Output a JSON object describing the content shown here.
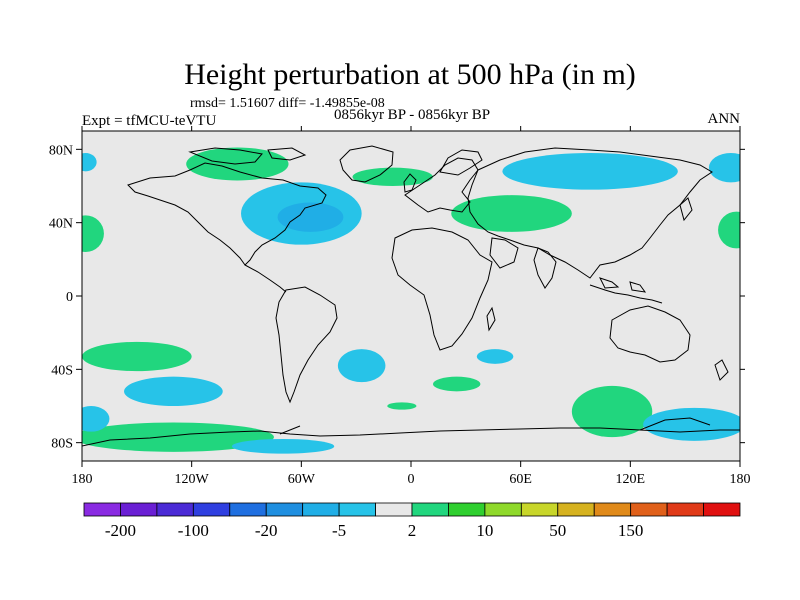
{
  "chart_data": {
    "type": "heatmap",
    "title": "Height perturbation at 500 hPa (in m)",
    "stats_text": "rmsd= 1.51607 diff= -1.49855e-08",
    "left_label": "Expt = tfMCU-teVTU",
    "center_label": "0856kyr BP - 0856kyr BP",
    "right_label": "ANN",
    "x_ticks": [
      {
        "lon": -180,
        "label": "180"
      },
      {
        "lon": -120,
        "label": "120W"
      },
      {
        "lon": -60,
        "label": "60W"
      },
      {
        "lon": 0,
        "label": "0"
      },
      {
        "lon": 60,
        "label": "60E"
      },
      {
        "lon": 120,
        "label": "120E"
      },
      {
        "lon": 180,
        "label": "180"
      }
    ],
    "y_ticks": [
      {
        "lat": 80,
        "label": "80N"
      },
      {
        "lat": 40,
        "label": "40N"
      },
      {
        "lat": 0,
        "label": "0"
      },
      {
        "lat": -40,
        "label": "40S"
      },
      {
        "lat": -80,
        "label": "80S"
      }
    ],
    "xlim": [
      -180,
      180
    ],
    "ylim": [
      -90,
      90
    ],
    "colorbar": {
      "colors": [
        "#8a2be2",
        "#6a1fd4",
        "#4b2bd6",
        "#2f3fe0",
        "#1f6fe0",
        "#1f8fe0",
        "#20aee6",
        "#27c3e8",
        "#e8e8e8",
        "#21d67e",
        "#2fcf2f",
        "#8fd92b",
        "#c8d62a",
        "#d6b21f",
        "#e08a1a",
        "#e0601a",
        "#e03a18",
        "#e01010"
      ],
      "labels": [
        {
          "index": 1,
          "text": "-200"
        },
        {
          "index": 3,
          "text": "-100"
        },
        {
          "index": 5,
          "text": "-20"
        },
        {
          "index": 7,
          "text": "-5"
        },
        {
          "index": 9,
          "text": "2"
        },
        {
          "index": 11,
          "text": "10"
        },
        {
          "index": 13,
          "text": "50"
        },
        {
          "index": 15,
          "text": "150"
        }
      ]
    },
    "anomaly_regions": [
      {
        "level": "neg",
        "color": "#27c3e8",
        "lon": -60,
        "lat": 45,
        "rlon": 33,
        "rlat": 17
      },
      {
        "level": "neg2",
        "color": "#20aee6",
        "lon": -55,
        "lat": 43,
        "rlon": 18,
        "rlat": 8
      },
      {
        "level": "neg",
        "color": "#27c3e8",
        "lon": 98,
        "lat": 68,
        "rlon": 48,
        "rlat": 10
      },
      {
        "level": "neg",
        "color": "#27c3e8",
        "lon": 175,
        "lat": 70,
        "rlon": 12,
        "rlat": 8
      },
      {
        "level": "neg",
        "color": "#27c3e8",
        "lon": -178,
        "lat": 73,
        "rlon": 6,
        "rlat": 5
      },
      {
        "level": "pos",
        "color": "#21d67e",
        "lon": -95,
        "lat": 72,
        "rlon": 28,
        "rlat": 9
      },
      {
        "level": "pos",
        "color": "#21d67e",
        "lon": -10,
        "lat": 65,
        "rlon": 22,
        "rlat": 5
      },
      {
        "level": "pos",
        "color": "#21d67e",
        "lon": 55,
        "lat": 45,
        "rlon": 33,
        "rlat": 10
      },
      {
        "level": "pos",
        "color": "#21d67e",
        "lon": -178,
        "lat": 34,
        "rlon": 10,
        "rlat": 10
      },
      {
        "level": "pos",
        "color": "#21d67e",
        "lon": 178,
        "lat": 36,
        "rlon": 10,
        "rlat": 10
      },
      {
        "level": "pos",
        "color": "#21d67e",
        "lon": -150,
        "lat": -33,
        "rlon": 30,
        "rlat": 8
      },
      {
        "level": "pos",
        "color": "#21d67e",
        "lon": -130,
        "lat": -77,
        "rlon": 55,
        "rlat": 8
      },
      {
        "level": "pos",
        "color": "#21d67e",
        "lon": 25,
        "lat": -48,
        "rlon": 13,
        "rlat": 4
      },
      {
        "level": "pos",
        "color": "#21d67e",
        "lon": 110,
        "lat": -63,
        "rlon": 22,
        "rlat": 14
      },
      {
        "level": "neg",
        "color": "#27c3e8",
        "lon": -130,
        "lat": -52,
        "rlon": 27,
        "rlat": 8
      },
      {
        "level": "neg",
        "color": "#27c3e8",
        "lon": -27,
        "lat": -38,
        "rlon": 13,
        "rlat": 9
      },
      {
        "level": "neg",
        "color": "#27c3e8",
        "lon": 46,
        "lat": -33,
        "rlon": 10,
        "rlat": 4
      },
      {
        "level": "neg",
        "color": "#27c3e8",
        "lon": -175,
        "lat": -67,
        "rlon": 10,
        "rlat": 7
      },
      {
        "level": "neg",
        "color": "#27c3e8",
        "lon": 155,
        "lat": -70,
        "rlon": 28,
        "rlat": 9
      },
      {
        "level": "neg",
        "color": "#27c3e8",
        "lon": -70,
        "lat": -82,
        "rlon": 28,
        "rlat": 4
      },
      {
        "level": "pos",
        "color": "#21d67e",
        "lon": -5,
        "lat": -60,
        "rlon": 8,
        "rlat": 2
      }
    ]
  }
}
